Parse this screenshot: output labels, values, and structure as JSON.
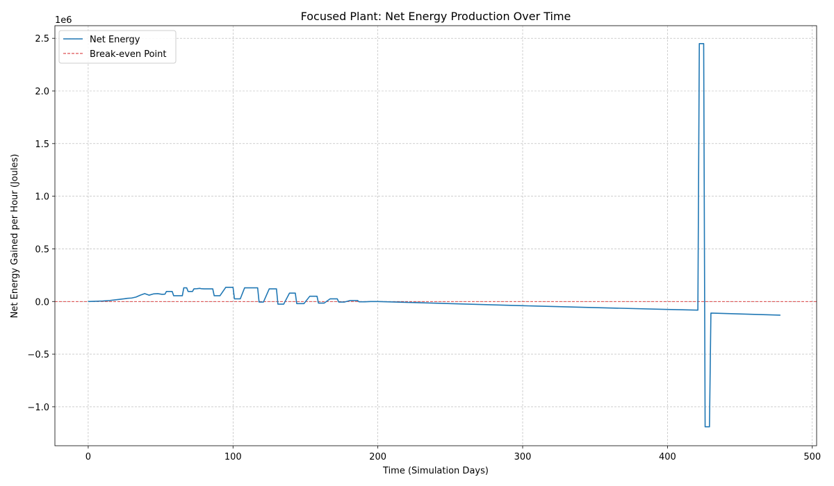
{
  "chart_data": {
    "type": "line",
    "title": "Focused Plant: Net Energy Production Over Time",
    "xlabel": "Time (Simulation Days)",
    "ylabel": "Net Energy Gained per Hour (Joules)",
    "y_offset_label": "1e6",
    "y_scale": 1000000,
    "xlim": [
      -23,
      503
    ],
    "ylim": [
      -1.37,
      2.62
    ],
    "x_ticks": [
      0,
      100,
      200,
      300,
      400,
      500
    ],
    "x_tick_labels": [
      "0",
      "100",
      "200",
      "300",
      "400",
      "500"
    ],
    "y_ticks": [
      -1.0,
      -0.5,
      0.0,
      0.5,
      1.0,
      1.5,
      2.0,
      2.5
    ],
    "y_tick_labels": [
      "−1.0",
      "−0.5",
      "0.0",
      "0.5",
      "1.0",
      "1.5",
      "2.0",
      "2.5"
    ],
    "grid": true,
    "legend_position": "top-left",
    "series": [
      {
        "name": "Net Energy",
        "color": "#1f77b4",
        "style": "solid",
        "x": [
          0,
          5,
          10,
          15,
          20,
          25,
          27,
          30,
          33,
          36,
          39,
          42,
          45,
          48,
          51,
          53,
          54,
          58,
          59,
          62,
          65,
          66,
          68,
          69,
          72,
          73,
          75,
          77,
          78,
          80,
          82,
          86,
          87,
          90,
          91,
          95,
          96,
          100,
          101,
          104,
          105,
          108,
          109,
          112,
          113,
          117,
          118,
          120,
          121,
          125,
          126,
          130,
          131,
          134,
          135,
          139,
          140,
          143,
          144,
          148,
          149,
          153,
          154,
          158,
          159,
          162,
          163,
          167,
          168,
          172,
          173,
          176,
          177,
          181,
          182,
          186,
          187,
          190,
          191,
          195,
          196,
          200,
          250,
          300,
          350,
          400,
          421,
          422,
          425,
          426,
          429,
          430,
          478
        ],
        "y": [
          0,
          2000,
          5000,
          10000,
          18000,
          26000,
          30000,
          33000,
          42000,
          60000,
          75000,
          60000,
          72000,
          75000,
          68000,
          70000,
          95000,
          95000,
          55000,
          55000,
          55000,
          130000,
          130000,
          95000,
          95000,
          120000,
          122000,
          125000,
          122000,
          120000,
          120000,
          120000,
          55000,
          55000,
          55000,
          135000,
          135000,
          135000,
          25000,
          25000,
          25000,
          130000,
          130000,
          130000,
          130000,
          130000,
          -5000,
          -5000,
          -5000,
          120000,
          120000,
          120000,
          -25000,
          -25000,
          -25000,
          80000,
          80000,
          80000,
          -20000,
          -20000,
          -20000,
          50000,
          50000,
          50000,
          -15000,
          -15000,
          -15000,
          25000,
          25000,
          25000,
          -5000,
          -5000,
          -5000,
          10000,
          10000,
          10000,
          -3000,
          -3000,
          -3000,
          0,
          0,
          0,
          -20000,
          -40000,
          -58000,
          -75000,
          -82000,
          2450000,
          2450000,
          -1190000,
          -1190000,
          -110000,
          -130000
        ]
      },
      {
        "name": "Break-even Point",
        "color": "#d62728",
        "style": "dashed",
        "y_constant": 0
      }
    ]
  }
}
